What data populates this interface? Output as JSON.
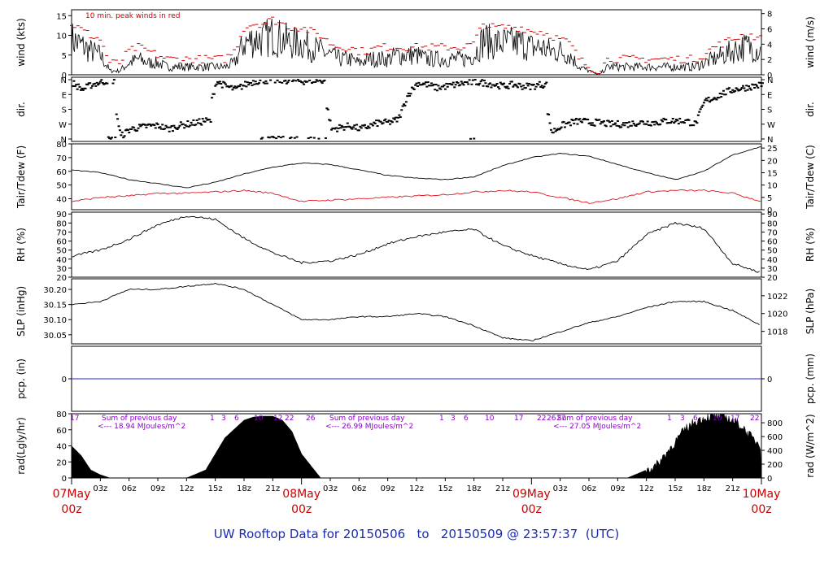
{
  "footer": {
    "prefix": "UW Rooftop Data for",
    "start": "20150506",
    "to": "to",
    "end": "20150509",
    "at": "@",
    "time": "23:57:37",
    "tz": "(UTC)"
  },
  "colors": {
    "dew": "#e0141e",
    "peak": "#cc0000",
    "annot": "#8b00c9",
    "pcp": "#2222dd",
    "date_label": "#cc0000",
    "footer": "#1a2bb4"
  },
  "chart_data": [
    {
      "type": "line",
      "panel": "wind",
      "ylabel_left": "wind (kts)",
      "ylabel_right": "wind (m/s)",
      "yticks_left": [
        "0",
        "5",
        "10",
        "15"
      ],
      "yticks_right": [
        "0",
        "2",
        "4",
        "6",
        "8"
      ],
      "ylim_left": [
        0,
        16.5
      ],
      "ylim_right": [
        0,
        8.5
      ],
      "annotation": "10 min. peak winds in red",
      "x_hours": [
        0,
        2,
        3,
        4,
        5,
        6,
        7,
        8,
        9,
        10,
        11,
        12,
        13,
        14,
        15,
        16,
        17,
        18,
        19,
        20,
        21,
        22,
        23,
        24,
        25,
        26,
        27,
        28,
        29,
        30,
        31,
        32,
        33,
        34,
        35,
        36,
        37,
        38,
        39,
        40,
        41,
        42,
        43,
        44,
        45,
        46,
        47,
        48,
        49,
        50,
        51,
        52,
        53,
        54,
        55,
        56,
        57,
        58,
        59,
        60,
        61,
        62,
        63,
        64,
        65,
        66,
        67,
        68,
        69,
        70,
        71,
        72
      ],
      "series": [
        {
          "name": "wind",
          "values": [
            9,
            6,
            5,
            1,
            1,
            3,
            4,
            3,
            3,
            2,
            2,
            2,
            2,
            2,
            2,
            2,
            3,
            8,
            9,
            9,
            10,
            9,
            8,
            8,
            7,
            6,
            5,
            4,
            4,
            3,
            4,
            4,
            4,
            5,
            5,
            5,
            4,
            4,
            4,
            4,
            4,
            5,
            9,
            8,
            8,
            8,
            8,
            7,
            7,
            6,
            6,
            5,
            2,
            1,
            0,
            2,
            2,
            2,
            2,
            2,
            2,
            2,
            2,
            2,
            2,
            3,
            4,
            5,
            6,
            7,
            7,
            6
          ]
        },
        {
          "name": "peak",
          "values": [
            13,
            10,
            9,
            3,
            3,
            6,
            7,
            6,
            5,
            4,
            4,
            4,
            4,
            4,
            4,
            4,
            6,
            12,
            13,
            13,
            14,
            13,
            12,
            12,
            11,
            10,
            8,
            7,
            7,
            6,
            6,
            7,
            7,
            7,
            7,
            7,
            7,
            7,
            7,
            7,
            7,
            8,
            13,
            12,
            12,
            12,
            12,
            11,
            11,
            10,
            9,
            8,
            4,
            2,
            1,
            4,
            4,
            4,
            4,
            4,
            4,
            4,
            4,
            4,
            4,
            5,
            7,
            8,
            9,
            10,
            10,
            9
          ]
        }
      ]
    },
    {
      "type": "scatter",
      "panel": "dir",
      "ylabel": "dir.",
      "yticks": [
        "N",
        "W",
        "S",
        "E",
        "N"
      ],
      "ylim": [
        0,
        360
      ],
      "x_hours": [
        0,
        1,
        2,
        3,
        4,
        5,
        6,
        7,
        8,
        9,
        10,
        11,
        12,
        13,
        14,
        15,
        16,
        17,
        18,
        19,
        20,
        21,
        22,
        23,
        24,
        25,
        26,
        27,
        28,
        29,
        30,
        31,
        32,
        33,
        34,
        35,
        36,
        37,
        38,
        39,
        40,
        41,
        42,
        43,
        44,
        45,
        46,
        47,
        48,
        49,
        50,
        51,
        52,
        53,
        54,
        55,
        56,
        57,
        58,
        59,
        60,
        61,
        62,
        63,
        64,
        65,
        66,
        67,
        68,
        69,
        70,
        71,
        72
      ],
      "values": [
        340,
        300,
        330,
        345,
        355,
        15,
        60,
        70,
        80,
        80,
        60,
        80,
        90,
        100,
        110,
        350,
        320,
        300,
        330,
        350,
        355,
        355,
        355,
        355,
        350,
        355,
        355,
        60,
        70,
        80,
        60,
        80,
        100,
        100,
        120,
        270,
        340,
        330,
        310,
        320,
        330,
        340,
        345,
        340,
        330,
        320,
        330,
        320,
        320,
        330,
        40,
        80,
        100,
        110,
        100,
        100,
        90,
        90,
        90,
        100,
        100,
        100,
        110,
        110,
        110,
        90,
        230,
        250,
        280,
        300,
        310,
        320,
        330
      ]
    },
    {
      "type": "line",
      "panel": "temperature",
      "ylabel_left": "Tair/Tdew (F)",
      "ylabel_right": "Tair/Tdew (C)",
      "yticks_left": [
        "40",
        "50",
        "60",
        "70",
        "80"
      ],
      "yticks_right": [
        "0",
        "5",
        "10",
        "15",
        "20",
        "25"
      ],
      "ylim_left": [
        32,
        80
      ],
      "ylim_right": [
        0,
        26.7
      ],
      "x_hours": [
        0,
        3,
        6,
        9,
        12,
        15,
        18,
        21,
        24,
        27,
        30,
        33,
        36,
        39,
        42,
        45,
        48,
        51,
        54,
        57,
        60,
        63,
        66,
        69,
        72
      ],
      "series": [
        {
          "name": "Tair",
          "values": [
            61,
            59,
            54,
            51,
            48,
            52,
            58,
            63,
            66,
            65,
            61,
            57,
            55,
            54,
            56,
            64,
            70,
            73,
            71,
            65,
            59,
            54,
            60,
            72,
            78
          ]
        },
        {
          "name": "Tdew",
          "values": [
            38,
            41,
            42,
            44,
            44,
            45,
            46,
            44,
            38,
            39,
            40,
            41,
            42,
            43,
            45,
            46,
            45,
            41,
            37,
            40,
            45,
            46,
            46,
            44,
            38
          ]
        }
      ]
    },
    {
      "type": "line",
      "panel": "rh",
      "ylabel_left": "RH (%)",
      "ylabel_right": "RH (%)",
      "yticks": [
        "20",
        "30",
        "40",
        "50",
        "60",
        "70",
        "80",
        "90"
      ],
      "ylim": [
        20,
        92
      ],
      "x_hours": [
        0,
        3,
        6,
        9,
        12,
        15,
        18,
        21,
        24,
        27,
        30,
        33,
        36,
        39,
        42,
        45,
        48,
        51,
        54,
        57,
        60,
        63,
        66,
        69,
        72
      ],
      "values": [
        43,
        50,
        62,
        78,
        88,
        84,
        63,
        47,
        36,
        38,
        45,
        57,
        65,
        70,
        73,
        55,
        44,
        35,
        28,
        38,
        67,
        80,
        74,
        35,
        25
      ]
    },
    {
      "type": "line",
      "panel": "slp",
      "ylabel_left": "SLP (inHg)",
      "ylabel_right": "SLP (hPa)",
      "yticks_left": [
        "30.05",
        "30.10",
        "30.15",
        "30.20"
      ],
      "yticks_right": [
        "1018",
        "1020",
        "1022"
      ],
      "ylim_left": [
        30.02,
        30.235
      ],
      "ylim_right": [
        1016.6,
        1023.9
      ],
      "x_hours": [
        0,
        3,
        6,
        9,
        12,
        15,
        18,
        21,
        24,
        27,
        30,
        33,
        36,
        39,
        42,
        45,
        48,
        51,
        54,
        57,
        60,
        63,
        66,
        69,
        72
      ],
      "values": [
        30.15,
        30.16,
        30.2,
        30.2,
        30.21,
        30.22,
        30.2,
        30.15,
        30.1,
        30.1,
        30.11,
        30.11,
        30.12,
        30.11,
        30.08,
        30.04,
        30.03,
        30.06,
        30.09,
        30.11,
        30.14,
        30.16,
        30.16,
        30.13,
        30.08
      ]
    },
    {
      "type": "line",
      "panel": "pcp",
      "ylabel_left": "pcp. (in)",
      "ylabel_right": "pcp. (mm)",
      "yticks_left": [
        "0"
      ],
      "yticks_right": [
        "0"
      ],
      "values": [
        0,
        0
      ]
    },
    {
      "type": "area",
      "panel": "rad",
      "ylabel_left": "rad(Lgly/hr)",
      "ylabel_right": "rad (W/m^2)",
      "yticks_left": [
        "0",
        "20",
        "40",
        "60",
        "80"
      ],
      "yticks_right": [
        "0",
        "200",
        "400",
        "600",
        "800"
      ],
      "ylim": [
        0,
        80
      ],
      "x_hours": [
        0,
        1,
        2,
        3,
        4,
        6,
        12,
        14,
        16,
        18,
        19,
        20,
        21,
        22,
        23,
        24,
        26,
        28,
        34,
        37,
        40,
        43,
        44,
        45,
        46,
        47,
        48,
        50,
        52,
        58,
        61,
        63,
        64,
        65,
        66,
        67,
        68,
        69,
        70,
        71,
        72
      ],
      "values": [
        40,
        28,
        10,
        4,
        0,
        0,
        0,
        10,
        50,
        72,
        76,
        77,
        77,
        72,
        58,
        30,
        0,
        0,
        0,
        0,
        0,
        0,
        0,
        0,
        0,
        0,
        0,
        0,
        0,
        0,
        15,
        45,
        60,
        70,
        75,
        77,
        77,
        72,
        64,
        50,
        40
      ],
      "annotations": [
        {
          "line1": "Sum of previous day",
          "line2": "<--- 18.94 MJoules/m^2"
        },
        {
          "line1": "Sum of previous day",
          "line2": "<--- 26.99 MJoules/m^2"
        },
        {
          "line1": "Sum of previous day",
          "line2": "<--- 27.05 MJoules/m^2"
        }
      ],
      "top_labels": [
        "17",
        "1",
        "3",
        "6",
        "10",
        "12",
        "22",
        "26",
        "1",
        "3",
        "6",
        "10",
        "17",
        "22",
        "26",
        "27",
        "1",
        "3",
        "6",
        "10",
        "17",
        "22"
      ]
    }
  ],
  "xaxis": {
    "hour_ticks": [
      "03z",
      "06z",
      "09z",
      "12z",
      "15z",
      "18z",
      "21z",
      "03z",
      "06z",
      "09z",
      "12z",
      "15z",
      "18z",
      "21z",
      "03z",
      "06z",
      "09z",
      "12z",
      "15z",
      "18z",
      "21z"
    ],
    "date_labels": [
      {
        "date": "07May",
        "hour": "00z"
      },
      {
        "date": "08May",
        "hour": "00z"
      },
      {
        "date": "09May",
        "hour": "00z"
      },
      {
        "date": "10May",
        "hour": "00z"
      }
    ]
  }
}
